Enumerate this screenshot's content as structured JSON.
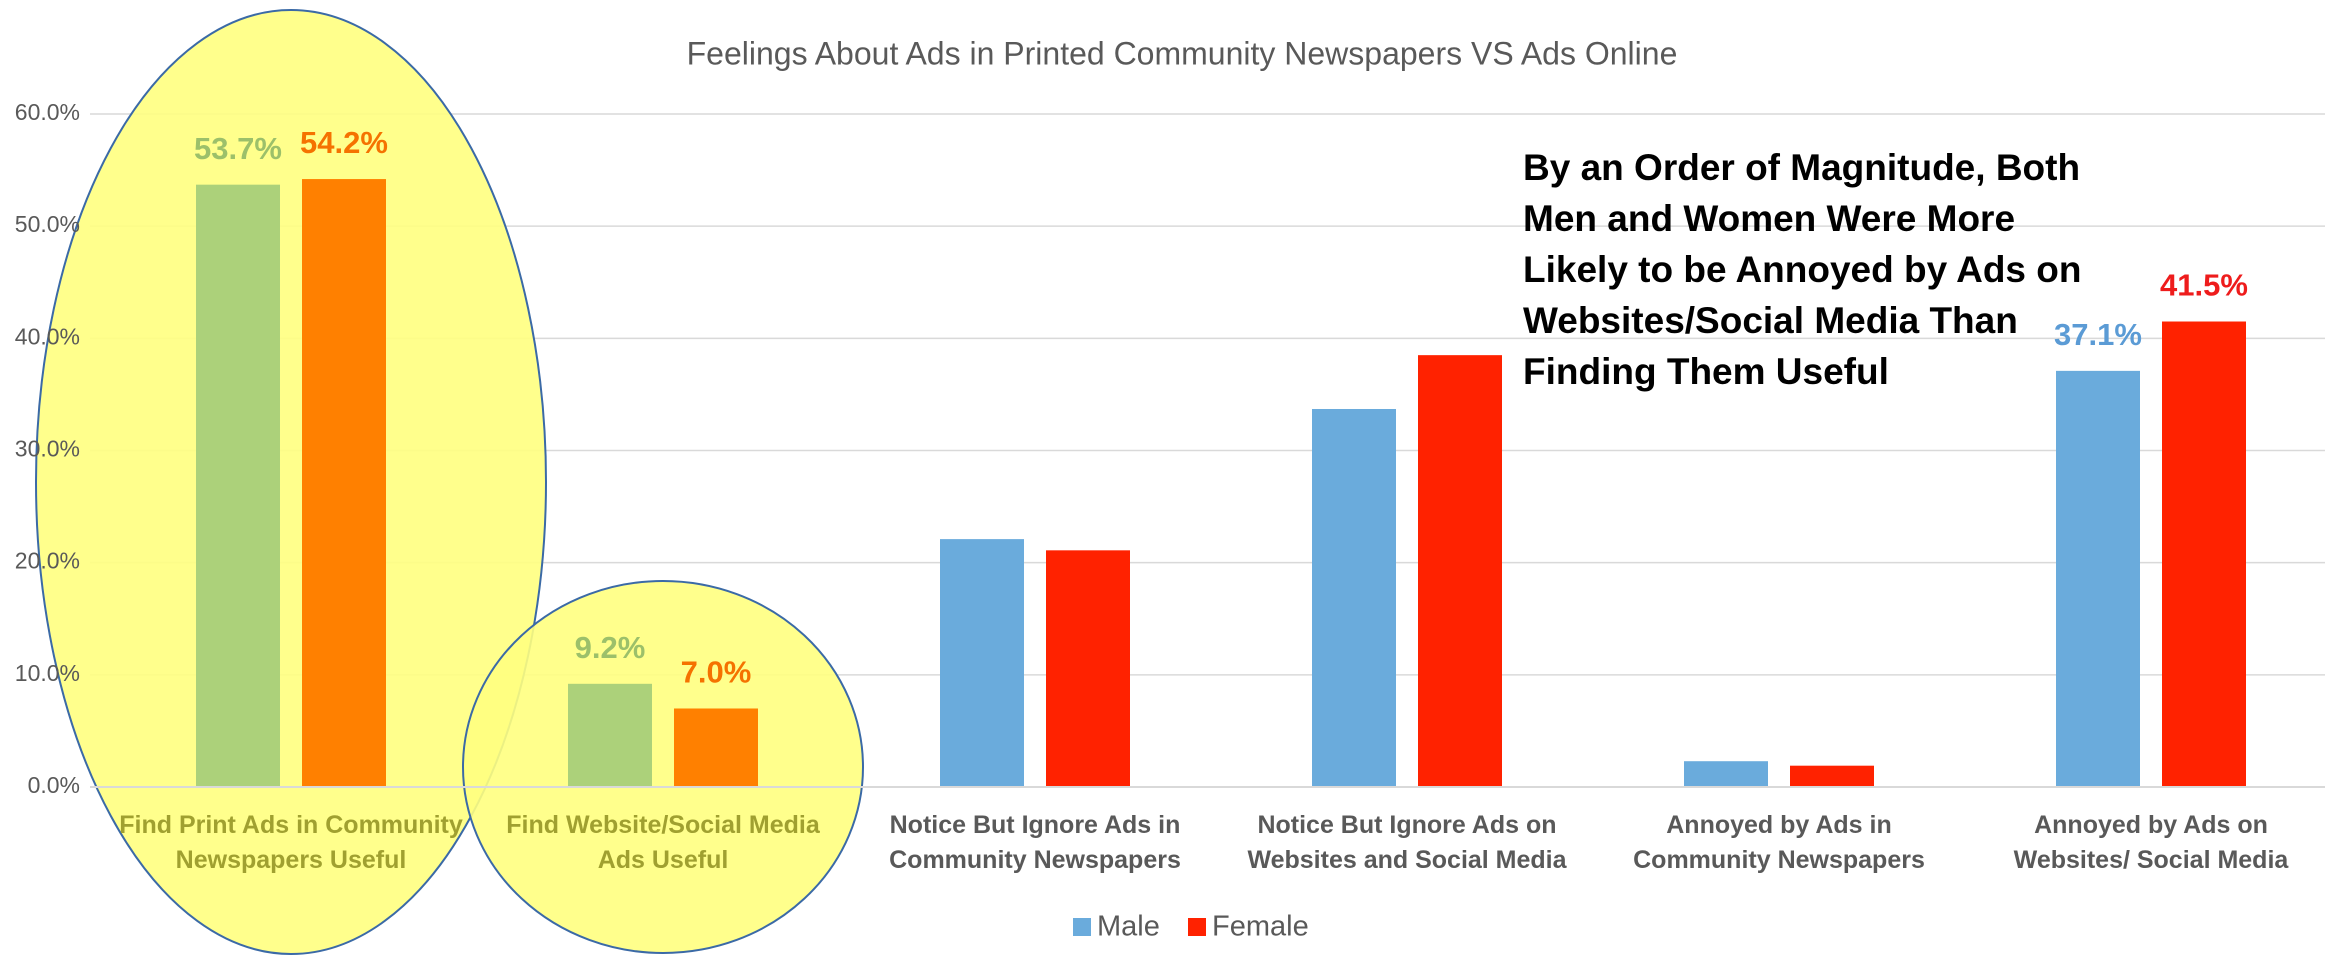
{
  "chart_data": {
    "type": "bar",
    "title": "Feelings About Ads in Printed Community Newspapers VS Ads Online",
    "categories": [
      "Find Print Ads in Community Newspapers Useful",
      "Find Website/Social Media Ads Useful",
      "Notice But Ignore Ads in Community Newspapers",
      "Notice But Ignore Ads on Websites and Social Media",
      "Annoyed by Ads in Community Newspapers",
      "Annoyed by Ads on Websites/ Social Media"
    ],
    "series": [
      {
        "name": "Male",
        "color": "#6aabdc",
        "colors": [
          "#acd17a",
          "#acd17a",
          "#6aabdc",
          "#6aabdc",
          "#6aabdc",
          "#6aabdc"
        ],
        "label_colors": [
          "#9cc06a",
          "#9cc06a",
          "#5b9bd5",
          "#5b9bd5",
          "#5b9bd5",
          "#5b9bd5"
        ],
        "values": [
          53.7,
          9.2,
          22.1,
          33.7,
          2.3,
          37.1
        ],
        "value_labels": [
          "53.7%",
          "9.2%",
          null,
          null,
          null,
          "37.1%"
        ]
      },
      {
        "name": "Female",
        "color": "#ff2200",
        "colors": [
          "#ff8000",
          "#ff8000",
          "#ff2200",
          "#ff2200",
          "#ff2200",
          "#ff2200"
        ],
        "label_colors": [
          "#f57200",
          "#f57200",
          "#ee1c1c",
          "#ee1c1c",
          "#ee1c1c",
          "#ee1c1c"
        ],
        "values": [
          54.2,
          7.0,
          21.1,
          38.5,
          1.9,
          41.5
        ],
        "value_labels": [
          "54.2%",
          "7.0%",
          null,
          null,
          null,
          "41.5%"
        ]
      }
    ],
    "ylim": [
      0,
      60
    ],
    "yticks": [
      {
        "value": 0,
        "label": "0.0%"
      },
      {
        "value": 10,
        "label": "10.0%"
      },
      {
        "value": 20,
        "label": "20.0%"
      },
      {
        "value": 30,
        "label": "30.0%"
      },
      {
        "value": 40,
        "label": "40.0%"
      },
      {
        "value": 50,
        "label": "50.0%"
      },
      {
        "value": 60,
        "label": "60.0%"
      }
    ],
    "grid": true,
    "legend": "bottom",
    "annotation": "By an Order of Magnitude, Both Men and Women Were More Likely to be Annoyed by Ads on Websites/Social Media Than Finding Them Useful"
  }
}
